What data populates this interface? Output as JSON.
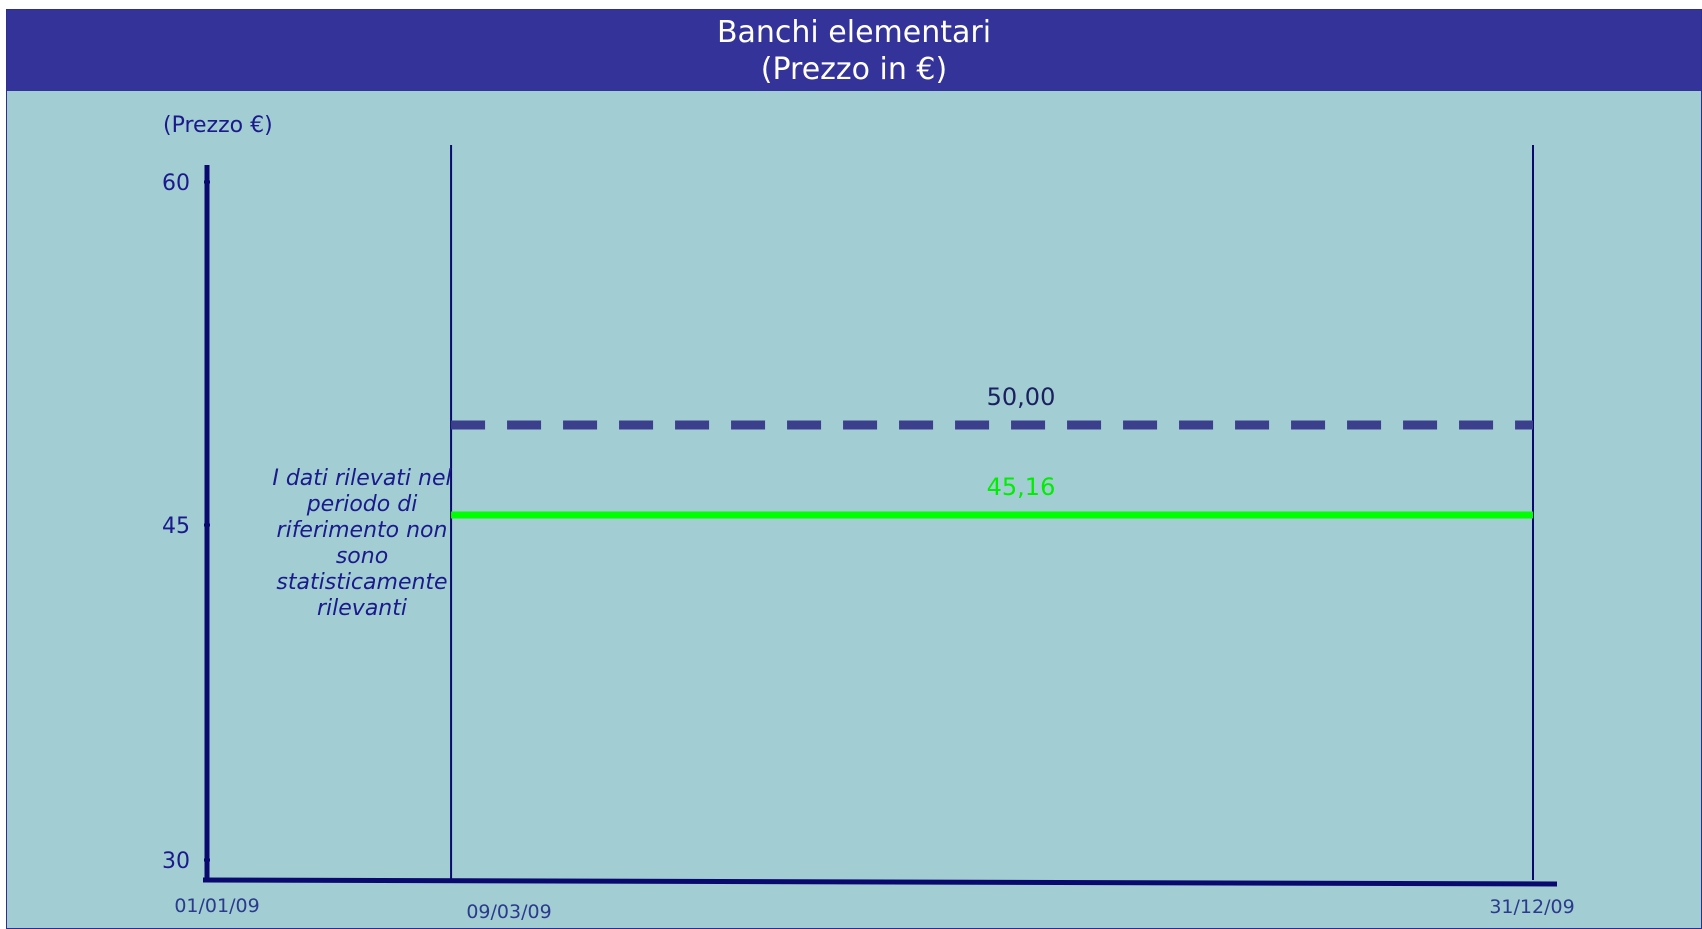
{
  "title": "Banchi elementari",
  "subtitle": "(Prezzo in €)",
  "note": "I dati rilevati nel periodo di riferimento non sono statisticamente rilevanti",
  "chart_data": {
    "type": "line",
    "title": "Banchi elementari",
    "subtitle": "(Prezzo in €)",
    "ylabel": "(Prezzo €)",
    "xlabel": "",
    "ylim": [
      30,
      60
    ],
    "y_ticks": [
      {
        "value": 60,
        "label": "60"
      },
      {
        "value": 45,
        "label": "45"
      },
      {
        "value": 30,
        "label": "30"
      }
    ],
    "x_range": [
      "2009-01-01",
      "2009-12-31"
    ],
    "x_ticks": [
      {
        "date": "2009-01-01",
        "label": "01/01/09"
      },
      {
        "date": "2009-03-09",
        "label": "09/03/09"
      },
      {
        "date": "2009-12-31",
        "label": "31/12/09"
      }
    ],
    "period_dividers": [
      "2009-03-09",
      "2009-12-31"
    ],
    "grid": false,
    "legend": "none",
    "series": [
      {
        "value_label": "50,00",
        "style": "dashed",
        "color": "#3b3f8c",
        "x": [
          "2009-03-09",
          "2009-12-31"
        ],
        "y": [
          50.0,
          50.0
        ]
      },
      {
        "value_label": "45,16",
        "style": "solid",
        "color": "#00ff00",
        "x": [
          "2009-03-09",
          "2009-12-31"
        ],
        "y": [
          45.16,
          45.16
        ]
      }
    ]
  }
}
